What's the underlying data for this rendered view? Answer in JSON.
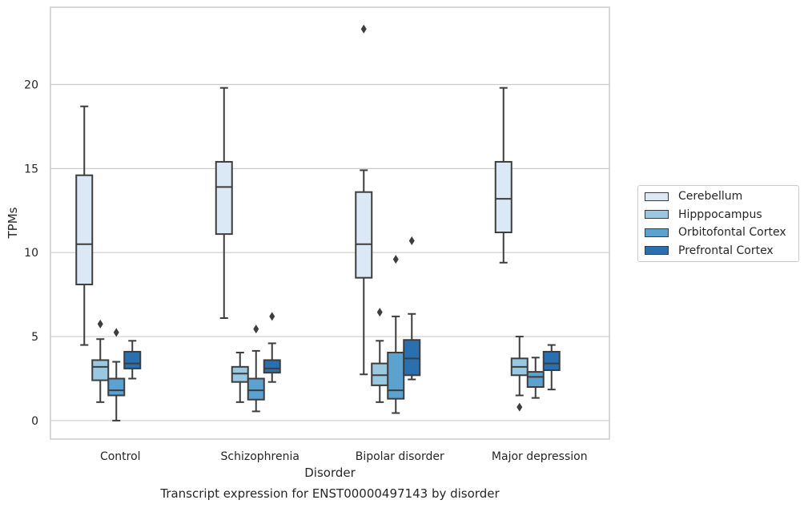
{
  "chart_data": {
    "type": "box",
    "xlabel": "Disorder",
    "ylabel": "TPMs",
    "ylim": [
      -1.1,
      24.6
    ],
    "yticks": [
      0,
      5,
      10,
      15,
      20
    ],
    "grid": "horizontal",
    "legend_placement": "right",
    "caption": "Transcript expression for ENST00000497143 by disorder",
    "categories": [
      "Control",
      "Schizophrenia",
      "Bipolar disorder",
      "Major depression"
    ],
    "series": [
      {
        "name": "Cerebellum",
        "color": "#dbe9f6",
        "boxes": [
          {
            "whislo": 4.5,
            "q1": 8.1,
            "med": 10.5,
            "q3": 14.6,
            "whishi": 18.7,
            "fliers": []
          },
          {
            "whislo": 6.1,
            "q1": 11.1,
            "med": 13.9,
            "q3": 15.4,
            "whishi": 19.8,
            "fliers": []
          },
          {
            "whislo": 2.75,
            "q1": 8.5,
            "med": 10.5,
            "q3": 13.6,
            "whishi": 14.9,
            "fliers": [
              23.3
            ]
          },
          {
            "whislo": 9.4,
            "q1": 11.2,
            "med": 13.2,
            "q3": 15.4,
            "whishi": 19.8,
            "fliers": []
          }
        ]
      },
      {
        "name": "Hipppocampus",
        "color": "#9ac8e0",
        "boxes": [
          {
            "whislo": 1.1,
            "q1": 2.4,
            "med": 3.2,
            "q3": 3.6,
            "whishi": 4.85,
            "fliers": [
              5.75
            ]
          },
          {
            "whislo": 1.1,
            "q1": 2.3,
            "med": 2.8,
            "q3": 3.2,
            "whishi": 4.05,
            "fliers": []
          },
          {
            "whislo": 1.1,
            "q1": 2.1,
            "med": 2.7,
            "q3": 3.4,
            "whishi": 4.75,
            "fliers": [
              6.45
            ]
          },
          {
            "whislo": 1.5,
            "q1": 2.7,
            "med": 3.2,
            "q3": 3.7,
            "whishi": 5.0,
            "fliers": [
              0.8
            ]
          }
        ]
      },
      {
        "name": "Orbitofontal Cortex",
        "color": "#5da2cf",
        "boxes": [
          {
            "whislo": 0.0,
            "q1": 1.5,
            "med": 1.8,
            "q3": 2.5,
            "whishi": 3.5,
            "fliers": [
              5.25
            ]
          },
          {
            "whislo": 0.55,
            "q1": 1.25,
            "med": 1.8,
            "q3": 2.5,
            "whishi": 4.15,
            "fliers": [
              5.45
            ]
          },
          {
            "whislo": 0.45,
            "q1": 1.3,
            "med": 1.8,
            "q3": 4.05,
            "whishi": 6.2,
            "fliers": [
              9.6
            ]
          },
          {
            "whislo": 1.35,
            "q1": 2.0,
            "med": 2.6,
            "q3": 2.9,
            "whishi": 3.75,
            "fliers": []
          }
        ]
      },
      {
        "name": "Prefrontal Cortex",
        "color": "#2a70b1",
        "boxes": [
          {
            "whislo": 2.5,
            "q1": 3.1,
            "med": 3.4,
            "q3": 4.1,
            "whishi": 4.75,
            "fliers": []
          },
          {
            "whislo": 2.3,
            "q1": 2.85,
            "med": 3.1,
            "q3": 3.6,
            "whishi": 4.6,
            "fliers": [
              6.2
            ]
          },
          {
            "whislo": 2.45,
            "q1": 2.7,
            "med": 3.7,
            "q3": 4.8,
            "whishi": 6.35,
            "fliers": [
              10.7
            ]
          },
          {
            "whislo": 1.85,
            "q1": 3.0,
            "med": 3.4,
            "q3": 4.1,
            "whishi": 4.5,
            "fliers": []
          }
        ]
      }
    ]
  }
}
